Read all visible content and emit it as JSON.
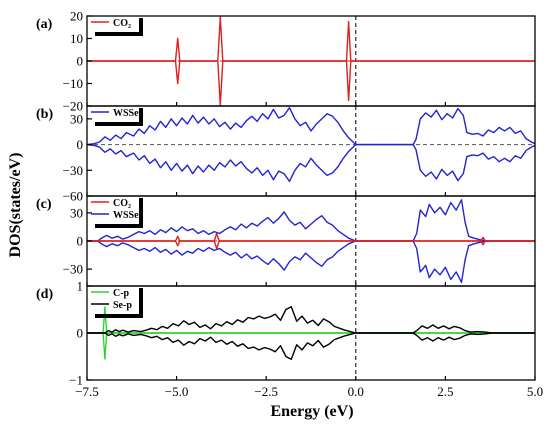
{
  "chart_data": [
    {
      "panel": "(a)",
      "type": "line",
      "ylim": [
        -20,
        20
      ],
      "yticks": [
        "20",
        "10",
        "0",
        "−10",
        "−20"
      ],
      "ytick_values": [
        20,
        10,
        0,
        -10,
        -20
      ],
      "legend": [
        "CO₂"
      ],
      "series": [
        {
          "name": "CO₂",
          "color": "#e0201b",
          "symmetric": true,
          "peaks": [
            {
              "x": -4.97,
              "y": 10,
              "w": 0.06
            },
            {
              "x": -3.78,
              "y": 19.5,
              "w": 0.07
            },
            {
              "x": -0.2,
              "y": 17.5,
              "w": 0.06
            }
          ]
        }
      ]
    },
    {
      "panel": "(b)",
      "type": "line",
      "ylim": [
        -60,
        45
      ],
      "yticks": [
        "30",
        "0",
        "−30",
        "−60"
      ],
      "ytick_values": [
        30,
        0,
        -30,
        -60
      ],
      "legend": [
        "WSSe"
      ],
      "series": [
        {
          "name": "WSSe",
          "color": "#2323d6",
          "symmetric": true,
          "profile": [
            [
              -7.5,
              0
            ],
            [
              -7.3,
              1
            ],
            [
              -7.15,
              3
            ],
            [
              -7.0,
              9
            ],
            [
              -6.85,
              5
            ],
            [
              -6.7,
              11
            ],
            [
              -6.55,
              7
            ],
            [
              -6.4,
              14
            ],
            [
              -6.2,
              10
            ],
            [
              -6.05,
              18
            ],
            [
              -5.9,
              13
            ],
            [
              -5.75,
              22
            ],
            [
              -5.6,
              17
            ],
            [
              -5.45,
              27
            ],
            [
              -5.3,
              20
            ],
            [
              -5.15,
              30
            ],
            [
              -5.0,
              22
            ],
            [
              -4.85,
              31
            ],
            [
              -4.7,
              24
            ],
            [
              -4.55,
              34
            ],
            [
              -4.4,
              25
            ],
            [
              -4.25,
              32
            ],
            [
              -4.1,
              24
            ],
            [
              -3.95,
              30
            ],
            [
              -3.8,
              21
            ],
            [
              -3.65,
              26
            ],
            [
              -3.5,
              18
            ],
            [
              -3.35,
              25
            ],
            [
              -3.2,
              20
            ],
            [
              -3.05,
              28
            ],
            [
              -2.9,
              33
            ],
            [
              -2.75,
              27
            ],
            [
              -2.6,
              36
            ],
            [
              -2.45,
              30
            ],
            [
              -2.3,
              41
            ],
            [
              -2.15,
              31
            ],
            [
              -2.0,
              34
            ],
            [
              -1.85,
              43
            ],
            [
              -1.7,
              30
            ],
            [
              -1.55,
              22
            ],
            [
              -1.4,
              26
            ],
            [
              -1.25,
              16
            ],
            [
              -1.1,
              24
            ],
            [
              -0.95,
              30
            ],
            [
              -0.8,
              36
            ],
            [
              -0.65,
              33
            ],
            [
              -0.5,
              26
            ],
            [
              -0.35,
              16
            ],
            [
              -0.2,
              8
            ],
            [
              -0.05,
              2
            ],
            [
              0.0,
              0
            ],
            [
              1.6,
              0
            ],
            [
              1.68,
              6
            ],
            [
              1.8,
              30
            ],
            [
              1.95,
              37
            ],
            [
              2.1,
              32
            ],
            [
              2.25,
              40
            ],
            [
              2.4,
              29
            ],
            [
              2.55,
              36
            ],
            [
              2.7,
              31
            ],
            [
              2.85,
              42
            ],
            [
              3.0,
              34
            ],
            [
              3.1,
              14
            ],
            [
              3.25,
              12
            ],
            [
              3.4,
              13
            ],
            [
              3.55,
              10
            ],
            [
              3.7,
              17
            ],
            [
              3.85,
              14
            ],
            [
              4.0,
              20
            ],
            [
              4.15,
              16
            ],
            [
              4.3,
              20
            ],
            [
              4.45,
              13
            ],
            [
              4.6,
              16
            ],
            [
              4.75,
              7
            ],
            [
              4.9,
              3
            ],
            [
              5.0,
              1
            ]
          ]
        }
      ]
    },
    {
      "panel": "(c)",
      "type": "line",
      "ylim": [
        -48,
        48
      ],
      "yticks": [
        "30",
        "0",
        "−30"
      ],
      "ytick_values": [
        30,
        0,
        -30
      ],
      "legend": [
        "CO₂",
        "WSSe"
      ],
      "series": [
        {
          "name": "WSSe",
          "color": "#2323d6",
          "symmetric": true,
          "profile": [
            [
              -7.5,
              0
            ],
            [
              -7.2,
              0
            ],
            [
              -7.1,
              3
            ],
            [
              -6.95,
              6
            ],
            [
              -6.8,
              3
            ],
            [
              -6.65,
              5
            ],
            [
              -6.5,
              2
            ],
            [
              -6.35,
              4
            ],
            [
              -6.2,
              7
            ],
            [
              -6.05,
              10
            ],
            [
              -5.9,
              8
            ],
            [
              -5.75,
              11
            ],
            [
              -5.6,
              7
            ],
            [
              -5.45,
              12
            ],
            [
              -5.3,
              9
            ],
            [
              -5.15,
              14
            ],
            [
              -5.0,
              10
            ],
            [
              -4.85,
              15
            ],
            [
              -4.7,
              11
            ],
            [
              -4.55,
              13
            ],
            [
              -4.4,
              8
            ],
            [
              -4.25,
              11
            ],
            [
              -4.1,
              7
            ],
            [
              -3.95,
              10
            ],
            [
              -3.8,
              8
            ],
            [
              -3.65,
              12
            ],
            [
              -3.5,
              15
            ],
            [
              -3.35,
              12
            ],
            [
              -3.2,
              18
            ],
            [
              -3.05,
              14
            ],
            [
              -2.9,
              19
            ],
            [
              -2.75,
              16
            ],
            [
              -2.6,
              21
            ],
            [
              -2.45,
              25
            ],
            [
              -2.3,
              19
            ],
            [
              -2.15,
              24
            ],
            [
              -2.0,
              31
            ],
            [
              -1.85,
              22
            ],
            [
              -1.7,
              17
            ],
            [
              -1.55,
              20
            ],
            [
              -1.4,
              13
            ],
            [
              -1.25,
              18
            ],
            [
              -1.1,
              23
            ],
            [
              -0.95,
              27
            ],
            [
              -0.8,
              20
            ],
            [
              -0.65,
              17
            ],
            [
              -0.5,
              11
            ],
            [
              -0.35,
              7
            ],
            [
              -0.2,
              3
            ],
            [
              0.0,
              0
            ],
            [
              1.6,
              0
            ],
            [
              1.7,
              8
            ],
            [
              1.8,
              33
            ],
            [
              1.95,
              26
            ],
            [
              2.05,
              39
            ],
            [
              2.2,
              30
            ],
            [
              2.35,
              36
            ],
            [
              2.5,
              28
            ],
            [
              2.65,
              41
            ],
            [
              2.8,
              33
            ],
            [
              2.95,
              44
            ],
            [
              3.05,
              20
            ],
            [
              3.15,
              5
            ],
            [
              3.3,
              3
            ],
            [
              3.5,
              1
            ],
            [
              3.7,
              0
            ],
            [
              5.0,
              0
            ]
          ]
        },
        {
          "name": "CO₂",
          "color": "#e0201b",
          "symmetric": true,
          "peaks": [
            {
              "x": -4.97,
              "y": 5,
              "w": 0.06
            },
            {
              "x": -3.88,
              "y": 8,
              "w": 0.07
            },
            {
              "x": 3.55,
              "y": 4,
              "w": 0.06
            }
          ]
        }
      ]
    },
    {
      "panel": "(d)",
      "type": "line",
      "ylim": [
        -1,
        1
      ],
      "yticks": [
        "1",
        "0",
        "−1"
      ],
      "ytick_values": [
        1,
        0,
        -1
      ],
      "legend": [
        "C-p",
        "Se-p"
      ],
      "series": [
        {
          "name": "C-p",
          "color": "#2fd42f",
          "symmetric": true,
          "peaks": [
            {
              "x": -7.0,
              "y": 0.55,
              "w": 0.05
            }
          ]
        },
        {
          "name": "Se-p",
          "color": "#000000",
          "symmetric": true,
          "profile": [
            [
              -7.5,
              0
            ],
            [
              -7.0,
              0
            ],
            [
              -6.9,
              0.05
            ],
            [
              -6.8,
              0.02
            ],
            [
              -6.7,
              0.07
            ],
            [
              -6.6,
              0.03
            ],
            [
              -6.5,
              0.06
            ],
            [
              -6.35,
              0.02
            ],
            [
              -6.2,
              0.05
            ],
            [
              -6.0,
              0.03
            ],
            [
              -5.85,
              0.06
            ],
            [
              -5.7,
              0.1
            ],
            [
              -5.55,
              0.07
            ],
            [
              -5.4,
              0.14
            ],
            [
              -5.25,
              0.1
            ],
            [
              -5.1,
              0.2
            ],
            [
              -4.95,
              0.15
            ],
            [
              -4.8,
              0.26
            ],
            [
              -4.65,
              0.18
            ],
            [
              -4.5,
              0.23
            ],
            [
              -4.35,
              0.12
            ],
            [
              -4.2,
              0.17
            ],
            [
              -4.05,
              0.09
            ],
            [
              -3.9,
              0.2
            ],
            [
              -3.75,
              0.15
            ],
            [
              -3.6,
              0.24
            ],
            [
              -3.45,
              0.18
            ],
            [
              -3.3,
              0.28
            ],
            [
              -3.15,
              0.23
            ],
            [
              -3.0,
              0.33
            ],
            [
              -2.85,
              0.3
            ],
            [
              -2.7,
              0.36
            ],
            [
              -2.55,
              0.31
            ],
            [
              -2.4,
              0.34
            ],
            [
              -2.25,
              0.4
            ],
            [
              -2.1,
              0.27
            ],
            [
              -1.95,
              0.5
            ],
            [
              -1.8,
              0.56
            ],
            [
              -1.65,
              0.25
            ],
            [
              -1.5,
              0.36
            ],
            [
              -1.35,
              0.21
            ],
            [
              -1.2,
              0.27
            ],
            [
              -1.05,
              0.16
            ],
            [
              -0.9,
              0.3
            ],
            [
              -0.75,
              0.24
            ],
            [
              -0.6,
              0.14
            ],
            [
              -0.45,
              0.1
            ],
            [
              -0.3,
              0.06
            ],
            [
              -0.1,
              0.02
            ],
            [
              0.0,
              0
            ],
            [
              1.6,
              0
            ],
            [
              1.7,
              0.05
            ],
            [
              1.85,
              0.15
            ],
            [
              2.0,
              0.1
            ],
            [
              2.15,
              0.17
            ],
            [
              2.3,
              0.1
            ],
            [
              2.45,
              0.15
            ],
            [
              2.6,
              0.09
            ],
            [
              2.75,
              0.14
            ],
            [
              2.9,
              0.11
            ],
            [
              3.05,
              0.05
            ],
            [
              3.2,
              0.02
            ],
            [
              3.4,
              0.03
            ],
            [
              3.6,
              0.02
            ],
            [
              3.8,
              0
            ],
            [
              5.0,
              0
            ]
          ]
        }
      ]
    }
  ],
  "xaxis": {
    "label": "Energy (eV)",
    "ticks": [
      "−7.5",
      "−5.0",
      "−2.5",
      "0.0",
      "2.5",
      "5.0"
    ],
    "tick_values": [
      -7.5,
      -5.0,
      -2.5,
      0.0,
      2.5,
      5.0
    ],
    "xlim": [
      -7.5,
      5.0
    ]
  },
  "yaxis": {
    "label": "DOS(states/eV)"
  },
  "fermi_level": 0.0
}
